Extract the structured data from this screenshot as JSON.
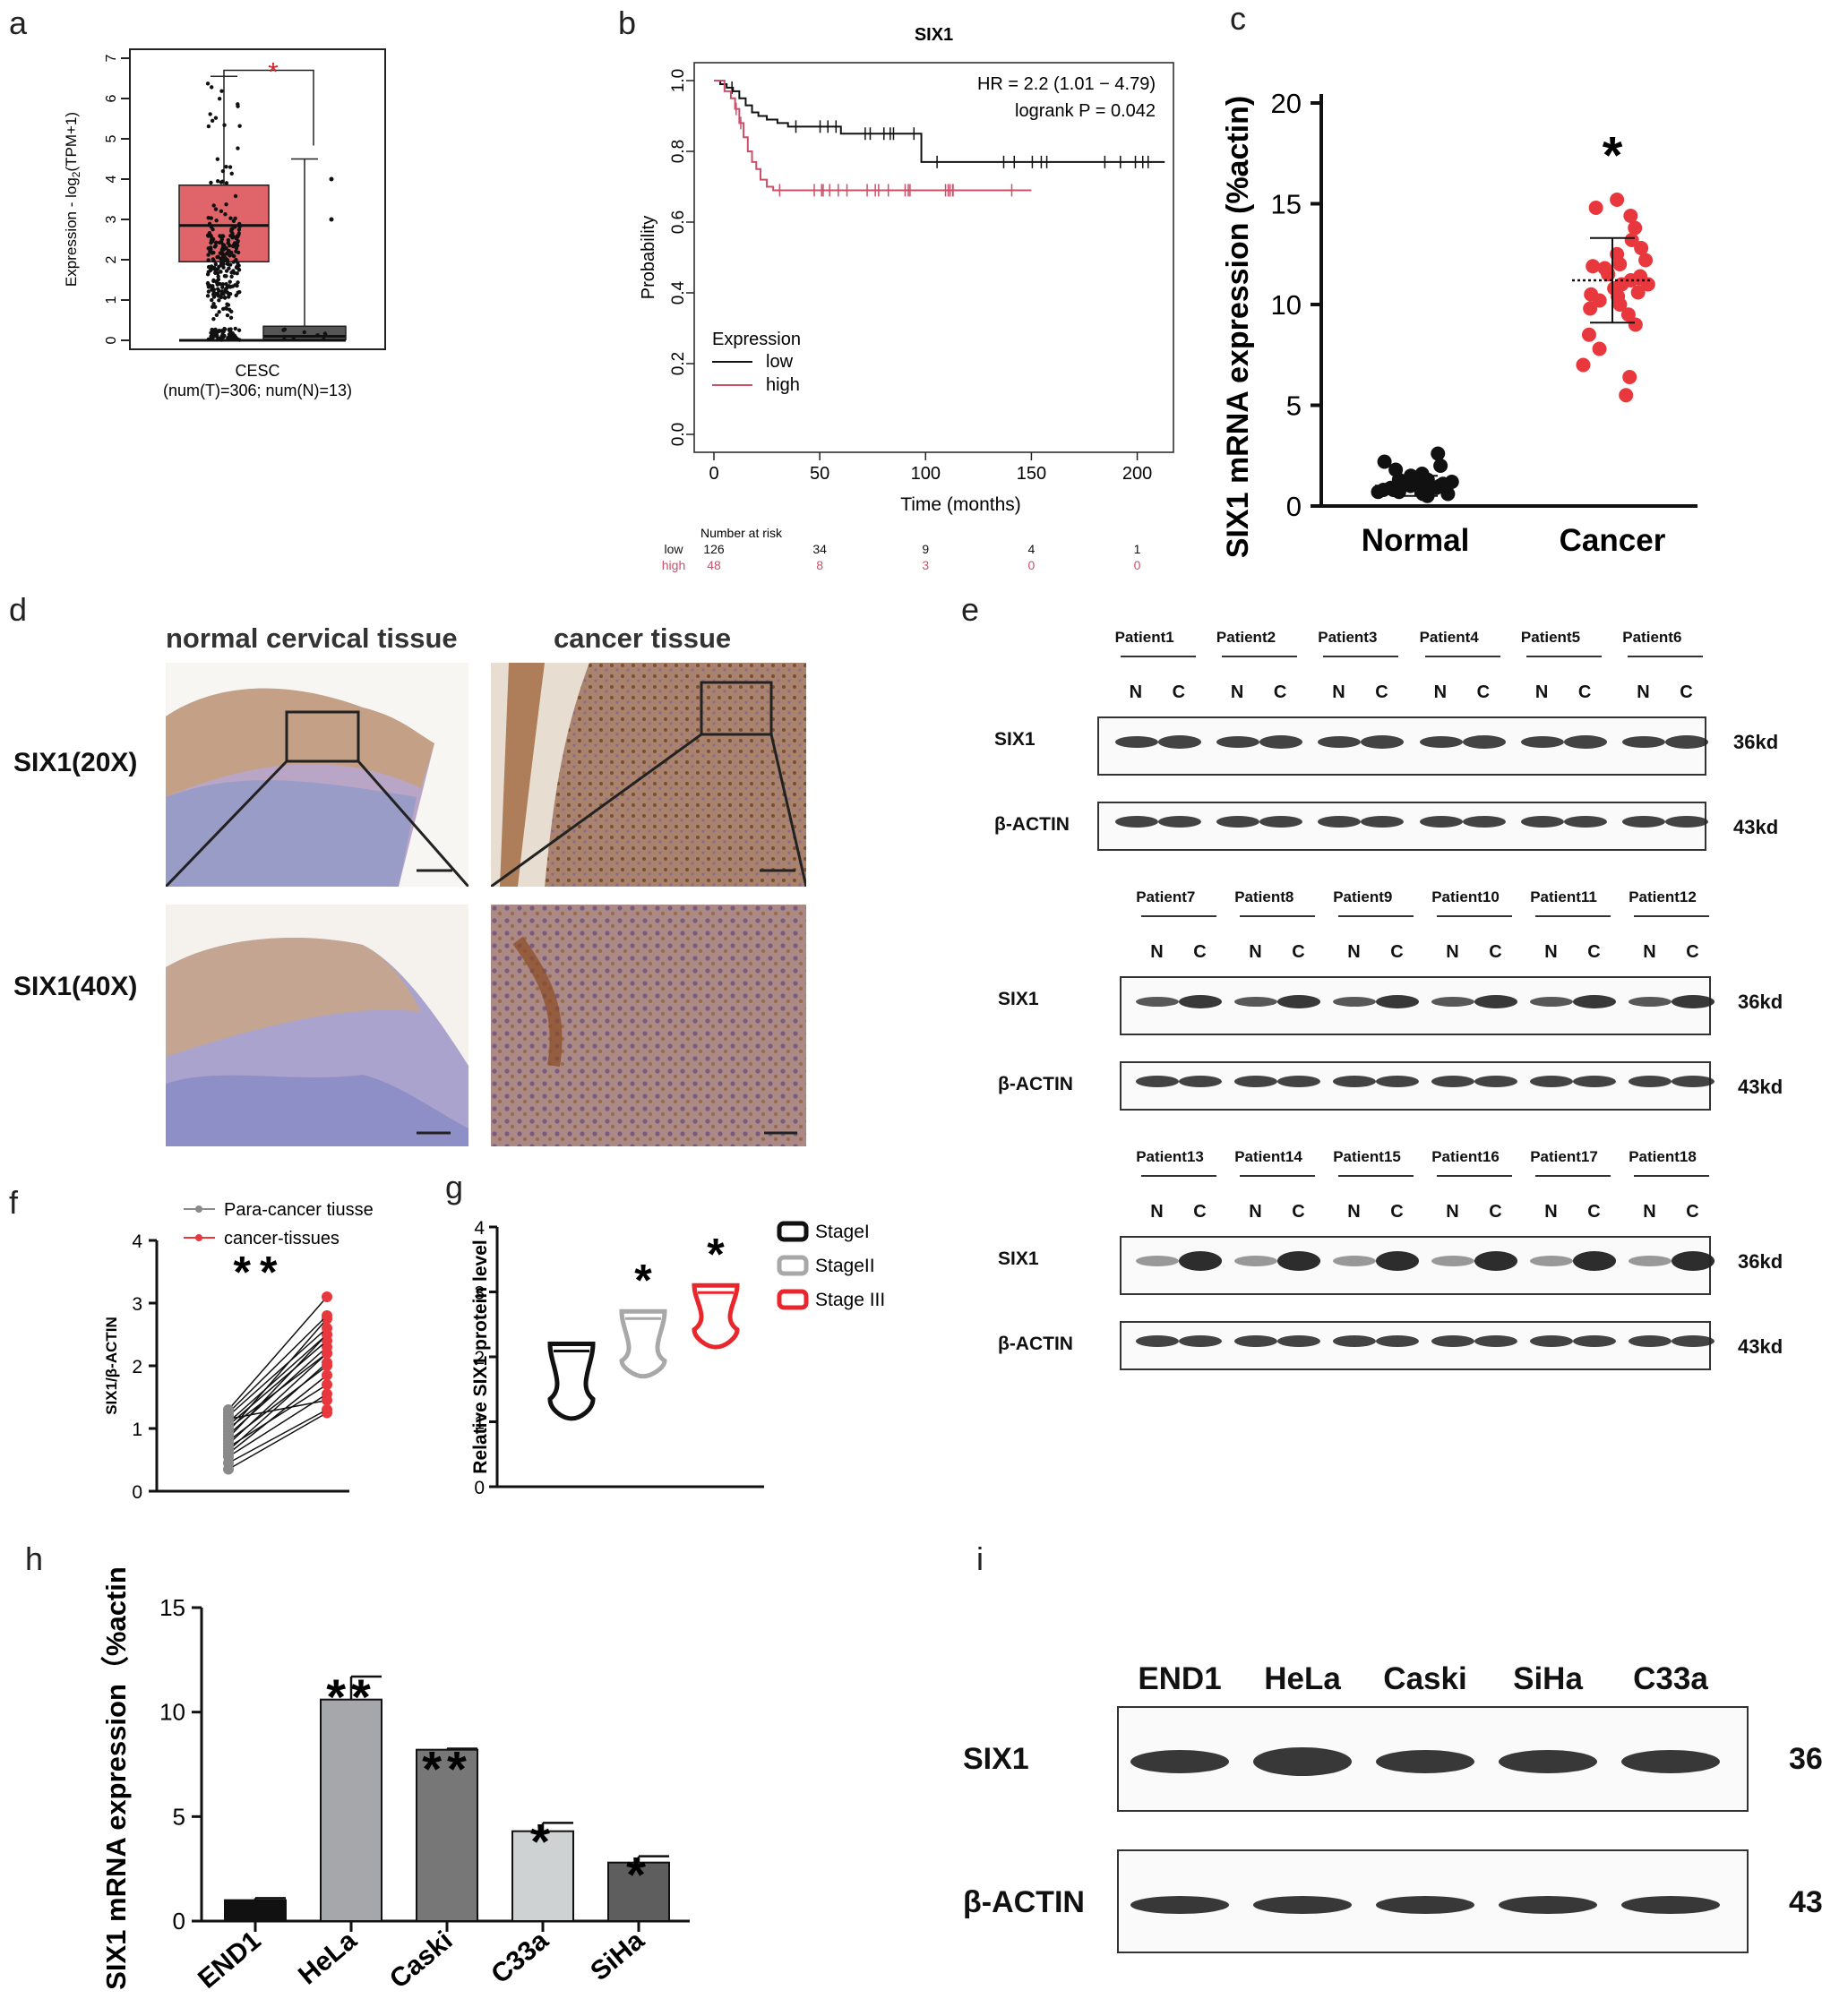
{
  "panel_labels": [
    "a",
    "b",
    "c",
    "d",
    "e",
    "f",
    "g",
    "h",
    "i"
  ],
  "chart_data": [
    {
      "id": "a",
      "type": "box",
      "ylabel_pre": "Expression - log",
      "ylabel_sub": "2",
      "ylabel_post": "(TPM+1)",
      "ylim": [
        0,
        7
      ],
      "yticks": [
        0,
        1,
        2,
        3,
        4,
        5,
        6,
        7
      ],
      "xlabel": "CESC",
      "xlabel2": "(num(T)=306; num(N)=13)",
      "significance": "*",
      "colors": {
        "tumor": "#e0656a",
        "normal": "#555555",
        "sig": "#d0242b"
      },
      "series": [
        {
          "name": "T",
          "q1": 1.95,
          "median": 2.85,
          "q3": 3.85,
          "whisker_low": 0,
          "whisker_high": 6.55
        },
        {
          "name": "N",
          "q1": 0.02,
          "median": 0.1,
          "q3": 0.35,
          "whisker_low": 0,
          "whisker_high": 4.5,
          "outliers": [
            4.0,
            3.0
          ]
        }
      ]
    },
    {
      "id": "b",
      "type": "line",
      "title": "SIX1",
      "xlabel": "Time (months)",
      "ylabel": "Probability",
      "xlim": [
        0,
        215
      ],
      "ylim": [
        0,
        1
      ],
      "xticks": [
        0,
        50,
        100,
        150,
        200
      ],
      "yticks": [
        0.0,
        0.2,
        0.4,
        0.6,
        0.8,
        1.0
      ],
      "annotations": [
        "HR = 2.2 (1.01 − 4.79)",
        "logrank P = 0.042"
      ],
      "legend_title": "Expression",
      "risk_table_title": "Number at risk",
      "series": [
        {
          "name": "low",
          "color": "#111111",
          "x": [
            0,
            3,
            6,
            9,
            12,
            15,
            18,
            21,
            25,
            30,
            35,
            40,
            60,
            95,
            98,
            150,
            213
          ],
          "y": [
            1.0,
            0.99,
            0.98,
            0.97,
            0.95,
            0.93,
            0.91,
            0.9,
            0.89,
            0.88,
            0.87,
            0.87,
            0.85,
            0.85,
            0.77,
            0.77,
            0.77
          ],
          "risk": [
            "126",
            "34",
            "9",
            "4",
            "1"
          ]
        },
        {
          "name": "high",
          "color": "#cc4f6a",
          "x": [
            0,
            5,
            8,
            10,
            12,
            14,
            16,
            18,
            20,
            22,
            25,
            28,
            150
          ],
          "y": [
            1.0,
            0.97,
            0.95,
            0.92,
            0.88,
            0.84,
            0.8,
            0.77,
            0.75,
            0.72,
            0.7,
            0.69,
            0.69
          ],
          "risk": [
            "48",
            "8",
            "3",
            "0",
            "0"
          ]
        }
      ]
    },
    {
      "id": "c",
      "type": "scatter",
      "ylabel": "SIX1 mRNA expression (%actin)",
      "ylim": [
        0,
        20
      ],
      "yticks": [
        0,
        5,
        10,
        15,
        20
      ],
      "categories": [
        "Normal",
        "Cancer"
      ],
      "significance": "*",
      "series": [
        {
          "name": "Normal",
          "color": "#111111",
          "mean": 1.0,
          "sd": 0.5,
          "values": [
            0.5,
            0.6,
            0.7,
            0.8,
            0.8,
            0.9,
            0.9,
            1.0,
            1.0,
            1.0,
            1.1,
            1.1,
            1.2,
            1.2,
            1.3,
            1.4,
            1.5,
            1.6,
            1.8,
            2.0,
            2.2,
            2.6,
            0.7,
            0.9,
            1.0,
            1.1,
            0.6,
            1.3
          ]
        },
        {
          "name": "Cancer",
          "color": "#e8383d",
          "mean": 11.2,
          "sd": 2.1,
          "values": [
            5.5,
            6.4,
            7.0,
            7.8,
            8.5,
            9.0,
            9.5,
            9.8,
            10.0,
            10.2,
            10.5,
            10.6,
            10.8,
            11.0,
            11.0,
            11.2,
            11.4,
            11.5,
            11.6,
            11.8,
            12.0,
            12.2,
            12.5,
            12.8,
            13.2,
            13.8,
            14.4,
            14.8,
            15.2,
            10.4,
            11.3,
            11.9
          ]
        }
      ]
    },
    {
      "id": "f",
      "type": "line",
      "ylabel": "SIX1/β-ACTIN",
      "ylim": [
        0,
        4
      ],
      "yticks": [
        0,
        1,
        2,
        3,
        4
      ],
      "significance": "**",
      "legend": [
        {
          "name": "Para-cancer tiusse",
          "color": "#8a8a8a"
        },
        {
          "name": "cancer-tissues",
          "color": "#e8383d"
        }
      ],
      "pairs": [
        [
          0.35,
          1.25
        ],
        [
          0.45,
          1.3
        ],
        [
          0.55,
          1.55
        ],
        [
          0.6,
          1.85
        ],
        [
          0.65,
          2.05
        ],
        [
          0.7,
          1.7
        ],
        [
          0.75,
          2.2
        ],
        [
          0.8,
          2.0
        ],
        [
          0.85,
          2.5
        ],
        [
          0.9,
          2.3
        ],
        [
          0.95,
          2.75
        ],
        [
          1.0,
          2.2
        ],
        [
          1.05,
          2.4
        ],
        [
          1.1,
          2.5
        ],
        [
          1.15,
          1.45
        ],
        [
          1.2,
          2.6
        ],
        [
          1.25,
          2.8
        ],
        [
          1.3,
          3.1
        ]
      ]
    },
    {
      "id": "g",
      "type": "violin",
      "ylabel": "Relative SIX1 protein level",
      "ylim": [
        0,
        4
      ],
      "yticks": [
        0,
        1,
        2,
        3,
        4
      ],
      "series": [
        {
          "name": "StageI",
          "color": "#111111",
          "min": 1.05,
          "max": 2.2,
          "mid": 1.55,
          "sig": ""
        },
        {
          "name": "StageII",
          "color": "#a8a8a8",
          "min": 1.7,
          "max": 2.7,
          "mid": 2.1,
          "sig": "*"
        },
        {
          "name": "Stage III",
          "color": "#e8262b",
          "min": 2.15,
          "max": 3.1,
          "mid": 2.6,
          "sig": "*"
        }
      ]
    },
    {
      "id": "h",
      "type": "bar",
      "ylabel": "SIX1 mRNA expression（%actin）",
      "ylim": [
        0,
        15
      ],
      "yticks": [
        0,
        5,
        10,
        15
      ],
      "categories": [
        "END1",
        "HeLa",
        "Caski",
        "C33a",
        "SiHa"
      ],
      "values": [
        1.0,
        10.6,
        8.2,
        4.3,
        2.8
      ],
      "errors": [
        0.1,
        1.1,
        0.05,
        0.4,
        0.3
      ],
      "significance": [
        "",
        "**",
        "**",
        "*",
        "*"
      ],
      "colors": [
        "#111111",
        "#a6a7ab",
        "#777777",
        "#cfd2d2",
        "#5e5e5e"
      ]
    }
  ],
  "panel_d": {
    "col_headers": [
      "normal cervical tissue",
      "cancer tissue"
    ],
    "row_labels": [
      "SIX1(20X)",
      "SIX1(40X)"
    ]
  },
  "panel_e": {
    "groups": [
      {
        "patients": [
          "Patient1",
          "Patient2",
          "Patient3",
          "Patient4",
          "Patient5",
          "Patient6"
        ]
      },
      {
        "patients": [
          "Patient7",
          "Patient8",
          "Patient9",
          "Patient10",
          "Patient11",
          "Patient12"
        ]
      },
      {
        "patients": [
          "Patient13",
          "Patient14",
          "Patient15",
          "Patient16",
          "Patient17",
          "Patient18"
        ]
      }
    ],
    "lane_labels": [
      "N",
      "C"
    ],
    "rows": [
      {
        "label": "SIX1",
        "kd": "36kd"
      },
      {
        "label": "β-ACTIN",
        "kd": "43kd"
      }
    ]
  },
  "panel_i": {
    "lanes": [
      "END1",
      "HeLa",
      "Caski",
      "SiHa",
      "C33a"
    ],
    "rows": [
      {
        "label": "SIX1",
        "kd": "36kd"
      },
      {
        "label": "β-ACTIN",
        "kd": "43kd"
      }
    ]
  }
}
